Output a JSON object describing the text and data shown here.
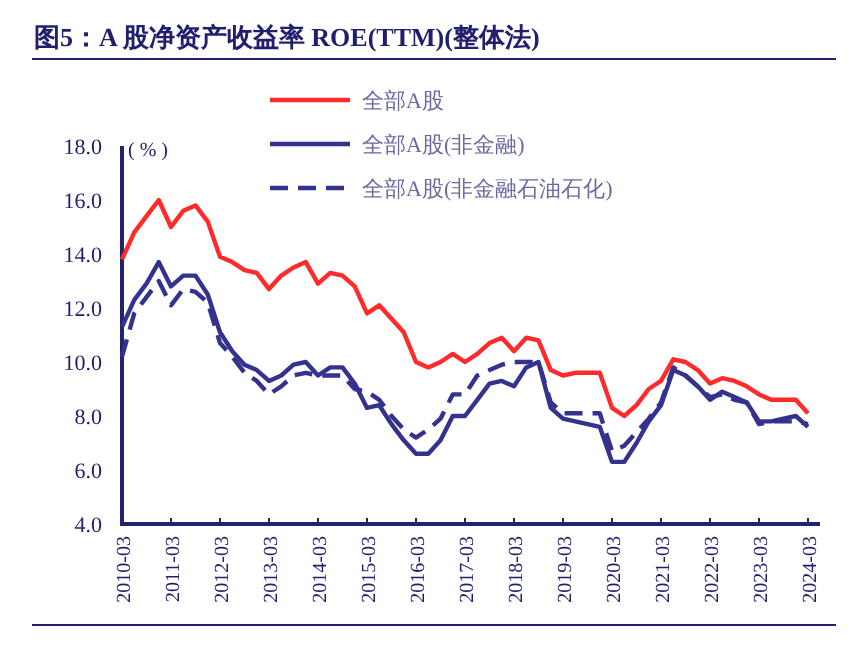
{
  "chart_data": {
    "type": "line",
    "title": "图5：A 股净资产收益率 ROE(TTM)(整体法)",
    "ylabel": "( % )",
    "categories": [
      "2010-03",
      null,
      null,
      null,
      "2011-03",
      null,
      null,
      null,
      "2012-03",
      null,
      null,
      null,
      "2013-03",
      null,
      null,
      null,
      "2014-03",
      null,
      null,
      null,
      "2015-03",
      null,
      null,
      null,
      "2016-03",
      null,
      null,
      null,
      "2017-03",
      null,
      null,
      null,
      "2018-03",
      null,
      null,
      null,
      "2019-03",
      null,
      null,
      null,
      "2020-03",
      null,
      null,
      null,
      "2021-03",
      null,
      null,
      null,
      "2022-03",
      null,
      null,
      null,
      "2023-03",
      null,
      null,
      null,
      "2024-03"
    ],
    "ylim": [
      4,
      18
    ],
    "yticks": [
      {
        "value": 4,
        "label": "4.0"
      },
      {
        "value": 6,
        "label": "6.0"
      },
      {
        "value": 8,
        "label": "8.0"
      },
      {
        "value": 10,
        "label": "10.0"
      },
      {
        "value": 12,
        "label": "12.0"
      },
      {
        "value": 14,
        "label": "14.0"
      },
      {
        "value": 16,
        "label": "16.0"
      },
      {
        "value": 18,
        "label": "18.0"
      }
    ],
    "legend": "top",
    "grid": false,
    "series": [
      {
        "name": "全部A股",
        "color": "#ff2a2a",
        "line_style": "solid",
        "values": [
          13.8,
          14.8,
          15.4,
          16.0,
          15.0,
          15.6,
          15.8,
          15.2,
          13.9,
          13.7,
          13.4,
          13.3,
          12.7,
          13.2,
          13.5,
          13.7,
          12.9,
          13.3,
          13.2,
          12.8,
          11.8,
          12.1,
          11.6,
          11.1,
          10.0,
          9.8,
          10.0,
          10.3,
          10.0,
          10.3,
          10.7,
          10.9,
          10.4,
          10.9,
          10.8,
          9.7,
          9.5,
          9.6,
          9.6,
          9.6,
          8.3,
          8.0,
          8.4,
          9.0,
          9.3,
          10.1,
          10.0,
          9.7,
          9.2,
          9.4,
          9.3,
          9.1,
          8.8,
          8.6,
          8.6,
          8.6,
          8.1
        ]
      },
      {
        "name": "全部A股(非金融)",
        "color": "#33338f",
        "line_style": "solid",
        "values": [
          11.3,
          12.3,
          12.9,
          13.7,
          12.8,
          13.2,
          13.2,
          12.5,
          11.1,
          10.4,
          9.9,
          9.7,
          9.3,
          9.5,
          9.9,
          10.0,
          9.5,
          9.8,
          9.8,
          9.2,
          8.3,
          8.4,
          7.7,
          7.1,
          6.6,
          6.6,
          7.1,
          8.0,
          8.0,
          8.6,
          9.2,
          9.3,
          9.1,
          9.8,
          10.0,
          8.3,
          7.9,
          7.8,
          7.7,
          7.6,
          6.3,
          6.3,
          7.0,
          7.8,
          8.4,
          9.7,
          9.5,
          9.1,
          8.6,
          8.9,
          8.7,
          8.5,
          7.8,
          7.8,
          7.9,
          8.0,
          7.6
        ]
      },
      {
        "name": "全部A股(非金融石油石化)",
        "color": "#33338f",
        "line_style": "dashed",
        "values": [
          10.2,
          11.8,
          12.4,
          13.0,
          12.1,
          12.7,
          12.6,
          12.2,
          10.7,
          10.2,
          9.6,
          9.3,
          8.8,
          9.1,
          9.5,
          9.6,
          9.5,
          9.5,
          9.5,
          9.0,
          8.9,
          8.6,
          8.0,
          7.5,
          7.2,
          7.5,
          7.9,
          8.8,
          8.8,
          9.5,
          9.7,
          9.9,
          10.0,
          10.0,
          10.0,
          8.5,
          8.1,
          8.1,
          8.1,
          8.1,
          6.7,
          6.9,
          7.4,
          7.9,
          8.5,
          9.8,
          9.5,
          9.1,
          8.7,
          8.8,
          8.6,
          8.5,
          7.7,
          7.8,
          7.8,
          7.8,
          7.7
        ]
      }
    ]
  }
}
